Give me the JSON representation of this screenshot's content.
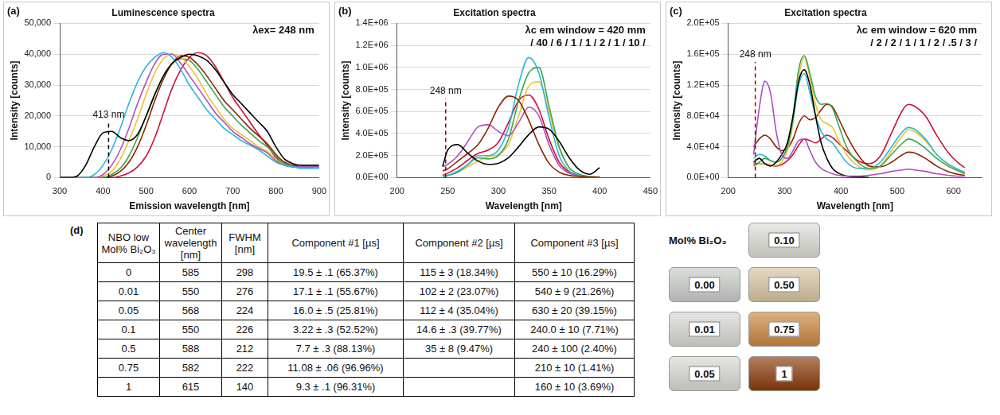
{
  "chart_data": [
    {
      "type": "line",
      "panel_label": "(a)",
      "title": "Luminescence spectra",
      "x_label": "Emission wavelength [nm]",
      "y_label": "Intensity [counts]",
      "xlim": [
        300,
        900
      ],
      "xticks": [
        300,
        400,
        500,
        600,
        700,
        800,
        900
      ],
      "ylim": [
        0,
        50000
      ],
      "yticks": [
        0,
        {
          "value": 10000,
          "label": "10,000"
        },
        {
          "value": 20000,
          "label": "20,000"
        },
        {
          "value": 30000,
          "label": "30,000"
        },
        {
          "value": 40000,
          "label": "40,000"
        },
        {
          "value": 50000,
          "label": "50,000"
        }
      ],
      "grid": "y",
      "annotations": [
        {
          "text": "λex= 248 nm"
        },
        {
          "text": "413 nm",
          "x": 413,
          "y": 18000,
          "line_style": "dashed",
          "color": "#000000"
        }
      ],
      "x": [
        300,
        320,
        340,
        360,
        380,
        400,
        420,
        440,
        460,
        480,
        500,
        520,
        540,
        560,
        580,
        600,
        620,
        640,
        660,
        680,
        700,
        720,
        740,
        760,
        780,
        800,
        820,
        840,
        860,
        880,
        900
      ],
      "series": [
        {
          "color": "#000000",
          "values": [
            0,
            0,
            500,
            4000,
            10000,
            14500,
            15000,
            13000,
            12000,
            14000,
            20000,
            27000,
            33000,
            37000,
            39000,
            40000,
            39500,
            38000,
            35000,
            31000,
            27000,
            24000,
            21000,
            18000,
            15000,
            10000,
            6000,
            4500,
            4000,
            4000,
            4000
          ]
        },
        {
          "color": "#29b6d8",
          "values": [
            0,
            0,
            0,
            0,
            1000,
            4000,
            9000,
            16000,
            24000,
            31000,
            36000,
            39000,
            40500,
            39000,
            35000,
            30000,
            26000,
            22000,
            19000,
            16000,
            14000,
            12000,
            10500,
            9000,
            7000,
            5000,
            4000,
            3500,
            3000,
            3000,
            3000
          ]
        },
        {
          "color": "#b04fc0",
          "values": [
            0,
            0,
            0,
            0,
            0,
            1000,
            4000,
            9000,
            16000,
            24000,
            31000,
            37000,
            40000,
            40000,
            37000,
            33000,
            29000,
            25000,
            21000,
            18000,
            15000,
            13000,
            11000,
            9500,
            8000,
            5500,
            4000,
            3500,
            3500,
            3500,
            3500
          ]
        },
        {
          "color": "#f2c12e",
          "values": [
            0,
            0,
            0,
            0,
            0,
            500,
            2000,
            6000,
            12000,
            19000,
            27000,
            34000,
            38500,
            40000,
            39000,
            36000,
            32000,
            27000,
            23000,
            19000,
            16000,
            14000,
            12000,
            10000,
            8500,
            6000,
            4000,
            3500,
            3500,
            3500,
            3500
          ]
        },
        {
          "color": "#3aa655",
          "values": [
            0,
            0,
            0,
            0,
            0,
            0,
            1000,
            3000,
            7000,
            13000,
            20000,
            27000,
            33000,
            37000,
            38500,
            38000,
            35000,
            31000,
            27000,
            23000,
            20000,
            17000,
            14500,
            12000,
            10000,
            7000,
            4500,
            3500,
            3500,
            3500,
            3500
          ]
        },
        {
          "color": "#8b2500",
          "values": [
            0,
            0,
            0,
            0,
            0,
            0,
            500,
            2000,
            5000,
            10000,
            17000,
            25000,
            32000,
            37000,
            39500,
            39000,
            36500,
            33000,
            29000,
            25000,
            22000,
            19000,
            16000,
            13500,
            11000,
            7500,
            5000,
            4000,
            3500,
            3500,
            3500
          ]
        },
        {
          "color": "#d0103a",
          "values": [
            0,
            0,
            0,
            0,
            0,
            0,
            0,
            500,
            1500,
            3500,
            7000,
            13000,
            21000,
            29000,
            35000,
            39000,
            40500,
            39500,
            36000,
            31000,
            26000,
            22000,
            18000,
            14000,
            10500,
            6500,
            4500,
            3500,
            3500,
            3500,
            3500
          ]
        }
      ]
    },
    {
      "type": "line",
      "panel_label": "(b)",
      "title": "Excitation spectra",
      "x_label": "Wavelength [nm]",
      "y_label": "Intensity [counts]",
      "xlim": [
        200,
        450
      ],
      "xticks": [
        200,
        250,
        300,
        350,
        400,
        450
      ],
      "ylim": [
        0,
        1400000
      ],
      "yticks": [
        {
          "value": 0,
          "label": "0.0E+00"
        },
        {
          "value": 200000,
          "label": "2.0E+05"
        },
        {
          "value": 400000,
          "label": "4.0E+05"
        },
        {
          "value": 600000,
          "label": "6.0E+05"
        },
        {
          "value": 800000,
          "label": "8.0E+05"
        },
        {
          "value": 1000000,
          "label": "1.0E+06"
        },
        {
          "value": 1200000,
          "label": "1.2E+06"
        },
        {
          "value": 1400000,
          "label": "1.4E+06"
        }
      ],
      "grid": "y",
      "annotations": [
        {
          "text": "λc em window = 420 mm"
        },
        {
          "text": "/ 40 / 6 / 1 / 1 / 2 / 1 / 10 /"
        },
        {
          "text": "248 nm",
          "x": 248,
          "y": 720000,
          "line_style": "dashed",
          "color": "#8b0000"
        }
      ],
      "x": [
        245,
        250,
        260,
        270,
        280,
        290,
        300,
        310,
        320,
        330,
        340,
        350,
        360,
        370,
        380,
        390,
        400
      ],
      "series": [
        {
          "color": "#000000",
          "values": [
            100000,
            250000,
            300000,
            220000,
            150000,
            120000,
            130000,
            180000,
            280000,
            390000,
            460000,
            440000,
            330000,
            180000,
            70000,
            30000,
            90000
          ]
        },
        {
          "color": "#8b2500",
          "values": [
            60000,
            80000,
            150000,
            220000,
            300000,
            450000,
            640000,
            740000,
            700000,
            520000,
            300000,
            130000,
            50000,
            20000,
            10000,
            5000,
            5000
          ]
        },
        {
          "color": "#b04fc0",
          "values": [
            100000,
            120000,
            200000,
            330000,
            460000,
            480000,
            420000,
            380000,
            500000,
            640000,
            560000,
            300000,
            110000,
            40000,
            15000,
            5000,
            5000
          ]
        },
        {
          "color": "#29b6d8",
          "values": [
            10000,
            20000,
            60000,
            120000,
            200000,
            200000,
            250000,
            450000,
            850000,
            1090000,
            950000,
            550000,
            200000,
            60000,
            20000,
            5000,
            5000
          ]
        },
        {
          "color": "#3aa655",
          "values": [
            10000,
            20000,
            50000,
            120000,
            180000,
            170000,
            200000,
            350000,
            700000,
            950000,
            1000000,
            650000,
            280000,
            90000,
            30000,
            10000,
            5000
          ]
        },
        {
          "color": "#f2c12e",
          "values": [
            10000,
            20000,
            50000,
            100000,
            150000,
            190000,
            210000,
            300000,
            560000,
            830000,
            870000,
            600000,
            270000,
            90000,
            30000,
            10000,
            5000
          ]
        },
        {
          "color": "#d0103a",
          "values": [
            20000,
            40000,
            90000,
            160000,
            220000,
            250000,
            320000,
            500000,
            700000,
            750000,
            620000,
            350000,
            140000,
            50000,
            20000,
            5000,
            5000
          ]
        }
      ]
    },
    {
      "type": "line",
      "panel_label": "(c)",
      "title": "Excitation spectra",
      "x_label": "Wavelength [nm]",
      "y_label": "Intensity [counts]",
      "xlim": [
        200,
        650
      ],
      "xticks": [
        200,
        300,
        400,
        500,
        600
      ],
      "ylim": [
        0,
        200000
      ],
      "yticks": [
        {
          "value": 0,
          "label": "0.0E+00"
        },
        {
          "value": 40000,
          "label": "4.0E+04"
        },
        {
          "value": 80000,
          "label": "8.0E+04"
        },
        {
          "value": 120000,
          "label": "1.2E+05"
        },
        {
          "value": 160000,
          "label": "1.6E+05"
        },
        {
          "value": 200000,
          "label": "2.0E+05"
        }
      ],
      "grid": "y",
      "annotations": [
        {
          "text": "λc em window = 620 mm"
        },
        {
          "text": "/ 2 / 2 / 1 / 1 / 2 / .5 / 3 /"
        },
        {
          "text": "248 nm",
          "x": 248,
          "y": 150000,
          "line_style": "dashed",
          "color": "#8b0000"
        }
      ],
      "x": [
        245,
        255,
        265,
        275,
        285,
        295,
        305,
        315,
        325,
        335,
        345,
        355,
        365,
        375,
        385,
        395,
        410,
        430,
        450,
        470,
        490,
        510,
        520,
        530,
        550,
        570,
        590,
        610,
        620
      ],
      "series": [
        {
          "color": "#b04fc0",
          "values": [
            30000,
            90000,
            125000,
            110000,
            60000,
            30000,
            25000,
            35000,
            48000,
            50000,
            35000,
            20000,
            12000,
            8000,
            5000,
            3000,
            2000,
            2000,
            3000,
            5000,
            8000,
            10000,
            11000,
            10000,
            8000,
            5000,
            3000,
            2000,
            2000
          ]
        },
        {
          "color": "#000000",
          "values": [
            20000,
            25000,
            18000,
            15000,
            20000,
            30000,
            45000,
            80000,
            125000,
            140000,
            120000,
            80000,
            45000,
            25000,
            12000,
            6000,
            2000,
            1000,
            0,
            null,
            null,
            null,
            null,
            null,
            null,
            null,
            null,
            null,
            null
          ]
        },
        {
          "color": "#3aa655",
          "values": [
            15000,
            20000,
            25000,
            22000,
            20000,
            25000,
            40000,
            80000,
            140000,
            158000,
            135000,
            105000,
            95000,
            96000,
            90000,
            70000,
            40000,
            20000,
            12000,
            15000,
            30000,
            45000,
            50000,
            48000,
            38000,
            25000,
            15000,
            8000,
            5000
          ]
        },
        {
          "color": "#29b6d8",
          "values": [
            25000,
            30000,
            28000,
            22000,
            20000,
            25000,
            40000,
            75000,
            120000,
            135000,
            110000,
            80000,
            60000,
            50000,
            45000,
            35000,
            20000,
            12000,
            12000,
            20000,
            40000,
            60000,
            65000,
            63000,
            50000,
            30000,
            18000,
            10000,
            7000
          ]
        },
        {
          "color": "#f2c12e",
          "values": [
            15000,
            18000,
            18000,
            16000,
            16000,
            20000,
            35000,
            70000,
            130000,
            155000,
            130000,
            95000,
            75000,
            70000,
            65000,
            50000,
            30000,
            15000,
            10000,
            15000,
            35000,
            55000,
            62000,
            60000,
            48000,
            30000,
            17000,
            9000,
            6000
          ]
        },
        {
          "color": "#8b2500",
          "values": [
            40000,
            50000,
            55000,
            50000,
            40000,
            35000,
            38000,
            50000,
            70000,
            80000,
            75000,
            78000,
            88000,
            95000,
            92000,
            78000,
            55000,
            30000,
            15000,
            14000,
            20000,
            30000,
            33000,
            32000,
            25000,
            15000,
            8000,
            4000,
            3000
          ]
        },
        {
          "color": "#d0103a",
          "values": [
            18000,
            18000,
            18000,
            16000,
            15000,
            17000,
            22000,
            30000,
            42000,
            50000,
            48000,
            45000,
            50000,
            55000,
            52000,
            45000,
            35000,
            22000,
            18000,
            28000,
            58000,
            88000,
            95000,
            93000,
            80000,
            55000,
            33000,
            18000,
            13000
          ]
        }
      ]
    }
  ],
  "table": {
    "panel_label": "(d)",
    "header": [
      "NBO low Mol% Bi₂O₃",
      "Center wavelength [nm]",
      "FWHM [nm]",
      "Component #1 [µs]",
      "Component #2 [µs]",
      "Component #3 [µs]"
    ],
    "rows": [
      [
        0,
        585,
        298,
        "19.5 ± .1 (65.37%)",
        "115 ± 3 (18.34%)",
        "550 ± 10 (16.29%)"
      ],
      [
        0.01,
        550,
        276,
        "17.1 ± .1 (55.67%)",
        "102 ± 2 (23.07%)",
        "540 ± 9 (21.26%)"
      ],
      [
        0.05,
        568,
        224,
        "16.0 ± .5 (25.81%)",
        "112 ± 4 (35.04%)",
        "630 ± 20 (39.15%)"
      ],
      [
        0.1,
        550,
        226,
        "3.22 ± .3 (52.52%)",
        "14.6 ± .3 (39.77%)",
        "240.0 ± 10 (7.71%)"
      ],
      [
        0.5,
        588,
        212,
        "7.7 ± .3 (88.13%)",
        "35 ± 8 (9.47%)",
        "240 ± 100 (2.40%)"
      ],
      [
        0.75,
        582,
        222,
        "11.08 ± .06 (96.96%)",
        null,
        "210 ± 10 (1.41%)"
      ],
      [
        1,
        615,
        140,
        "9.3 ± .1 (96.31%)",
        null,
        "160 ± 10 (3.69%)"
      ]
    ]
  },
  "samples": {
    "title": "Mol% Bi₂O₃",
    "rows": [
      [
        null,
        {
          "label": "0.10",
          "color": "#dcdcd6"
        }
      ],
      [
        {
          "label": "0.00",
          "color": "#c9ccc8"
        },
        {
          "label": "0.50",
          "color": "#d8c3a0"
        }
      ],
      [
        {
          "label": "0.01",
          "color": "#d6d8d2"
        },
        {
          "label": "0.75",
          "color": "#c8863f"
        }
      ],
      [
        {
          "label": "0.05",
          "color": "#d8d8d2"
        },
        {
          "label": "1",
          "color": "#8a3a0a"
        }
      ]
    ]
  }
}
